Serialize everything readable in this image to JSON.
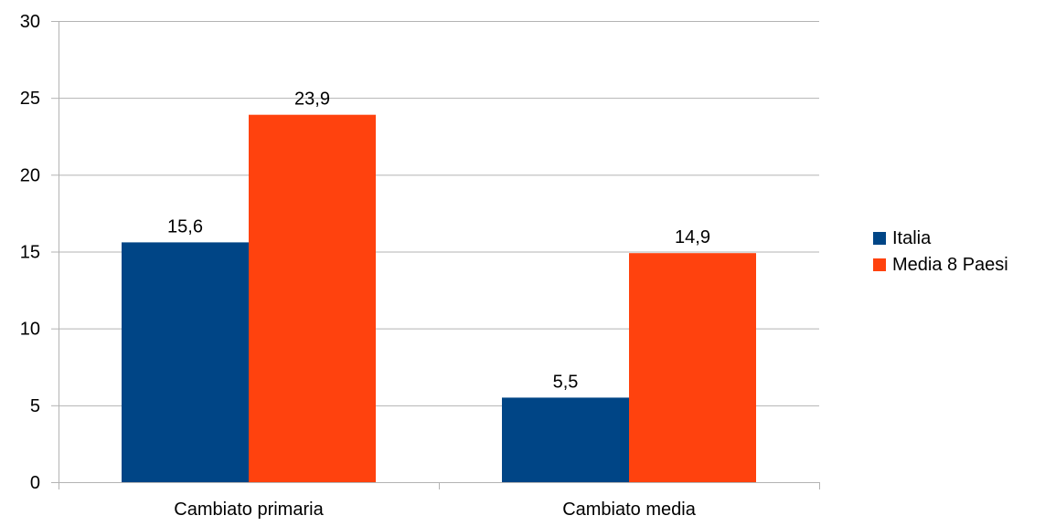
{
  "chart_data": {
    "type": "bar",
    "categories": [
      "Cambiato primaria",
      "Cambiato media"
    ],
    "series": [
      {
        "name": "Italia",
        "values": [
          15.6,
          5.5
        ],
        "labels": [
          "15,6",
          "5,5"
        ],
        "color": "#004586"
      },
      {
        "name": "Media 8 Paesi",
        "values": [
          23.9,
          14.9
        ],
        "labels": [
          "23,9",
          "14,9"
        ],
        "color": "#ff420e"
      }
    ],
    "title": "",
    "xlabel": "",
    "ylabel": "",
    "ylim": [
      0,
      30
    ],
    "yticks": [
      0,
      5,
      10,
      15,
      20,
      25,
      30
    ],
    "grid": true,
    "legend_position": "right"
  }
}
